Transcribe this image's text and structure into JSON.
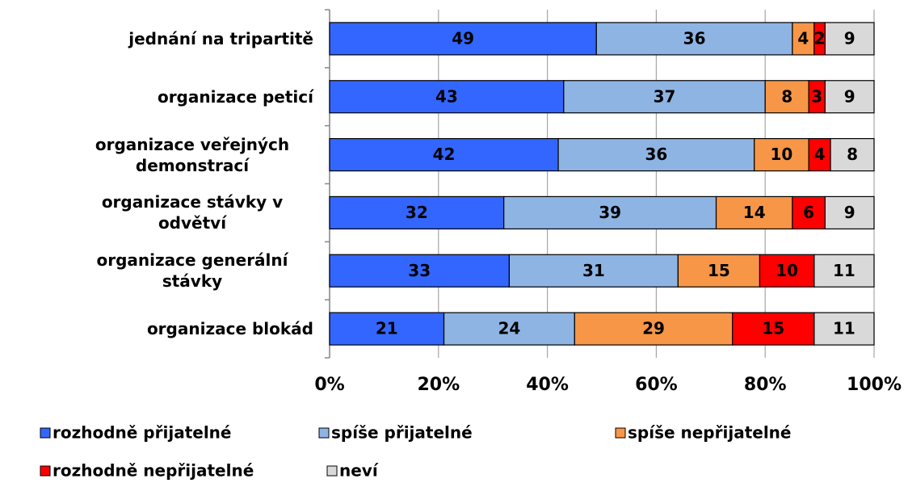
{
  "chart_data": {
    "type": "stacked-bar-horizontal",
    "categories": [
      "jednání na tripartitě",
      "organizace peticí",
      "organizace veřejných demonstrací",
      "organizace stávky v odvětví",
      "organizace generální stávky",
      "organizace blokád"
    ],
    "series": [
      {
        "name": "rozhodně přijatelné",
        "color": "#3366ff",
        "values": [
          49,
          43,
          42,
          32,
          33,
          21
        ]
      },
      {
        "name": "spíše přijatelné",
        "color": "#8eb4e3",
        "values": [
          36,
          37,
          36,
          39,
          31,
          24
        ]
      },
      {
        "name": "spíše nepřijatelné",
        "color": "#f79646",
        "values": [
          4,
          8,
          10,
          14,
          15,
          29
        ]
      },
      {
        "name": "rozhodně nepřijatelné",
        "color": "#ff0000",
        "values": [
          2,
          3,
          4,
          6,
          10,
          15
        ]
      },
      {
        "name": "neví",
        "color": "#d9d9d9",
        "values": [
          9,
          9,
          8,
          9,
          11,
          11
        ]
      }
    ],
    "xlim": [
      0,
      100
    ],
    "xticks": [
      {
        "value": 0,
        "label": "0%"
      },
      {
        "value": 20,
        "label": "20%"
      },
      {
        "value": 40,
        "label": "40%"
      },
      {
        "value": 60,
        "label": "60%"
      },
      {
        "value": 80,
        "label": "80%"
      },
      {
        "value": 100,
        "label": "100%"
      }
    ],
    "grid": true
  }
}
